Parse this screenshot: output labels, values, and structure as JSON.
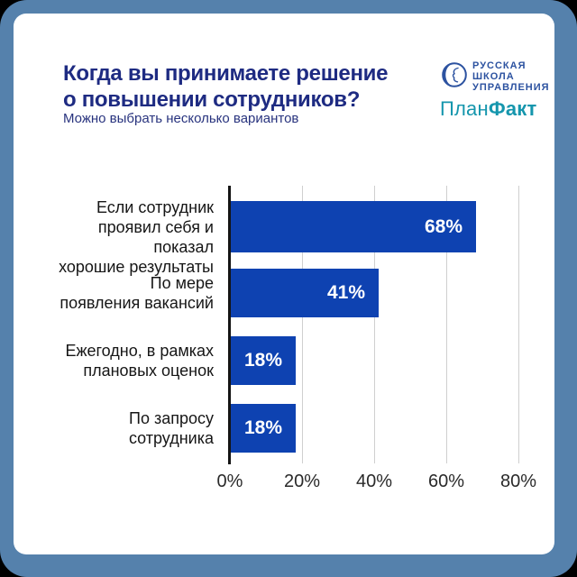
{
  "frame": {
    "outer_background": "#000000",
    "border_color": "#5581AC",
    "card_background": "#FFFFFF"
  },
  "header": {
    "title": "Когда вы принимаете решение\nо повышении сотрудников?",
    "subtitle": "Можно выбрать несколько вариантов",
    "title_color": "#1E2B82"
  },
  "logos": {
    "rsu": {
      "text": "РУССКАЯ\nШКОЛА\nУПРАВЛЕНИЯ",
      "color": "#2C52A0",
      "emblem": "face-profile-circle-icon"
    },
    "planfact": {
      "part1": "План",
      "part2": "Факт",
      "color": "#1596AD"
    }
  },
  "chart_data": {
    "type": "bar",
    "orientation": "horizontal",
    "title": "Когда вы принимаете решение о повышении сотрудников?",
    "subtitle": "Можно выбрать несколько вариантов",
    "categories": [
      "Если сотрудник проявил себя и показал хорошие результаты",
      "По мере появления вакансий",
      "Ежегодно, в рамках плановых оценок",
      "По запросу сотрудника"
    ],
    "category_labels": [
      "Если сотрудник\nпроявил себя и показал\nхорошие результаты",
      "По мере\nпоявления вакансий",
      "Ежегодно, в рамках\nплановых оценок",
      "По запросу\nсотрудника"
    ],
    "values": [
      68,
      41,
      18,
      18
    ],
    "value_labels": [
      "68%",
      "41%",
      "18%",
      "18%"
    ],
    "xticklabels": [
      "0%",
      "20%",
      "40%",
      "60%",
      "80%"
    ],
    "xlim": [
      0,
      90
    ],
    "grid": "vertical",
    "gridline_color": "#CFCFCF",
    "axis_color": "#141414",
    "bar_color": "#0E42B1",
    "value_label_color": "#FFFFFF",
    "legend": "none"
  }
}
